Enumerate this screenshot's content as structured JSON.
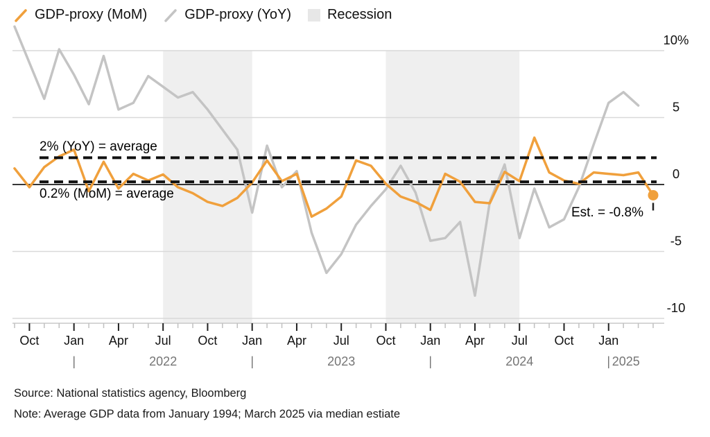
{
  "legend": {
    "items": [
      {
        "label": "GDP-proxy (MoM)",
        "icon": "orange-slash",
        "color": "#F0A03C"
      },
      {
        "label": "GDP-proxy (YoY)",
        "icon": "gray-slash",
        "color": "#C4C4C4"
      },
      {
        "label": "Recession",
        "icon": "gray-box",
        "color": "#E7E7E7"
      }
    ]
  },
  "annotations": {
    "yoy_average": "2% (YoY) = average",
    "mom_average": "0.2% (MoM) = average",
    "estimate": "Est. = -0.8%"
  },
  "footer": {
    "source": "Source: National statistics agency, Bloomberg",
    "note": "Note: Average GDP data from January 1994; March 2025 via median estiate"
  },
  "colors": {
    "mom_line": "#F0A03C",
    "yoy_line": "#C4C4C4",
    "recession_band": "#EFEFEF",
    "gridline": "#D9D9D9",
    "zero_line": "#1A1A1A",
    "dashed_line": "#111111",
    "axis_baseline": "#C8C8C8",
    "minor_tick": "#C0C0C0",
    "major_tick": "#222222",
    "month_text": "#111111",
    "year_text": "#757575",
    "est_marker_tick": "#222222"
  },
  "chart_data": {
    "type": "line",
    "title": "",
    "xlabel": "",
    "ylabel": "",
    "ylim": [
      -11,
      12.5
    ],
    "grid": "horizontal",
    "legend_position": "top-left",
    "x": [
      "Sep 2021",
      "Oct 2021",
      "Nov 2021",
      "Dec 2021",
      "Jan 2022",
      "Feb 2022",
      "Mar 2022",
      "Apr 2022",
      "May 2022",
      "Jun 2022",
      "Jul 2022",
      "Aug 2022",
      "Sep 2022",
      "Oct 2022",
      "Nov 2022",
      "Dec 2022",
      "Jan 2023",
      "Feb 2023",
      "Mar 2023",
      "Apr 2023",
      "May 2023",
      "Jun 2023",
      "Jul 2023",
      "Aug 2023",
      "Sep 2023",
      "Oct 2023",
      "Nov 2023",
      "Dec 2023",
      "Jan 2024",
      "Feb 2024",
      "Mar 2024",
      "Apr 2024",
      "May 2024",
      "Jun 2024",
      "Jul 2024",
      "Aug 2024",
      "Sep 2024",
      "Oct 2024",
      "Nov 2024",
      "Dec 2024",
      "Jan 2025",
      "Feb 2025",
      "Mar 2025",
      "Apr 2025"
    ],
    "series": [
      {
        "name": "GDP-proxy (MoM)",
        "color": "#F0A03C",
        "values": [
          1.2,
          -0.2,
          1.3,
          2.1,
          2.6,
          -0.5,
          1.7,
          -0.3,
          0.8,
          0.3,
          0.75,
          -0.2,
          -0.65,
          -1.3,
          -1.6,
          -1.0,
          0.15,
          1.8,
          0.25,
          0.8,
          -2.4,
          -1.8,
          -0.9,
          1.8,
          1.4,
          0.05,
          -0.9,
          -1.3,
          -1.9,
          0.8,
          0.2,
          -1.3,
          -1.4,
          0.95,
          0.25,
          3.5,
          0.9,
          0.3,
          0.05,
          0.9,
          0.8,
          0.7,
          0.9,
          -0.8
        ]
      },
      {
        "name": "GDP-proxy (YoY)",
        "color": "#C4C4C4",
        "values": [
          11.8,
          9.1,
          6.4,
          10.1,
          8.2,
          6.0,
          9.6,
          5.6,
          6.1,
          8.1,
          7.3,
          6.5,
          6.9,
          5.6,
          4.1,
          2.6,
          -2.1,
          2.9,
          -0.2,
          1.0,
          -3.6,
          -6.6,
          -5.2,
          -3.0,
          -1.6,
          -0.35,
          1.4,
          -0.6,
          -4.2,
          -4.0,
          -2.8,
          -8.3,
          -1.3,
          1.5,
          -4.0,
          -0.3,
          -3.2,
          -2.6,
          -0.2,
          3.0,
          6.1,
          6.9,
          5.9,
          null
        ]
      }
    ],
    "yticks": [
      {
        "value": 10,
        "label": "10%"
      },
      {
        "value": 5,
        "label": "5"
      },
      {
        "value": 0,
        "label": "0"
      },
      {
        "value": -5,
        "label": "-5"
      },
      {
        "value": -10,
        "label": "-10"
      }
    ],
    "avg_lines": [
      {
        "value": 2,
        "label": "2% (YoY) = average"
      },
      {
        "value": 0.2,
        "label": "0.2% (MoM) = average"
      }
    ],
    "recessions": [
      {
        "from": "Jul 2022",
        "to": "Jan 2023",
        "start_index": 10,
        "end_index": 16
      },
      {
        "from": "Oct 2023",
        "to": "Jul 2024",
        "start_index": 25,
        "end_index": 34
      }
    ],
    "x_major_ticks": [
      {
        "index": 1,
        "label": "Oct"
      },
      {
        "index": 4,
        "label": "Jan"
      },
      {
        "index": 7,
        "label": "Apr"
      },
      {
        "index": 10,
        "label": "Jul"
      },
      {
        "index": 13,
        "label": "Oct"
      },
      {
        "index": 16,
        "label": "Jan"
      },
      {
        "index": 19,
        "label": "Apr"
      },
      {
        "index": 22,
        "label": "Jul"
      },
      {
        "index": 25,
        "label": "Oct"
      },
      {
        "index": 28,
        "label": "Jan"
      },
      {
        "index": 31,
        "label": "Apr"
      },
      {
        "index": 34,
        "label": "Jul"
      },
      {
        "index": 37,
        "label": "Oct"
      },
      {
        "index": 40,
        "label": "Jan"
      }
    ],
    "years": [
      {
        "label": "2022",
        "jan_index": 4,
        "center_index": 10
      },
      {
        "label": "2023",
        "jan_index": 16,
        "center_index": 22
      },
      {
        "label": "2024",
        "jan_index": 28,
        "center_index": 34
      },
      {
        "label": "2025",
        "jan_index": 40,
        "center_index": null
      }
    ],
    "last_point": {
      "series": "GDP-proxy (MoM)",
      "label": "Est.",
      "value": -0.8
    }
  }
}
